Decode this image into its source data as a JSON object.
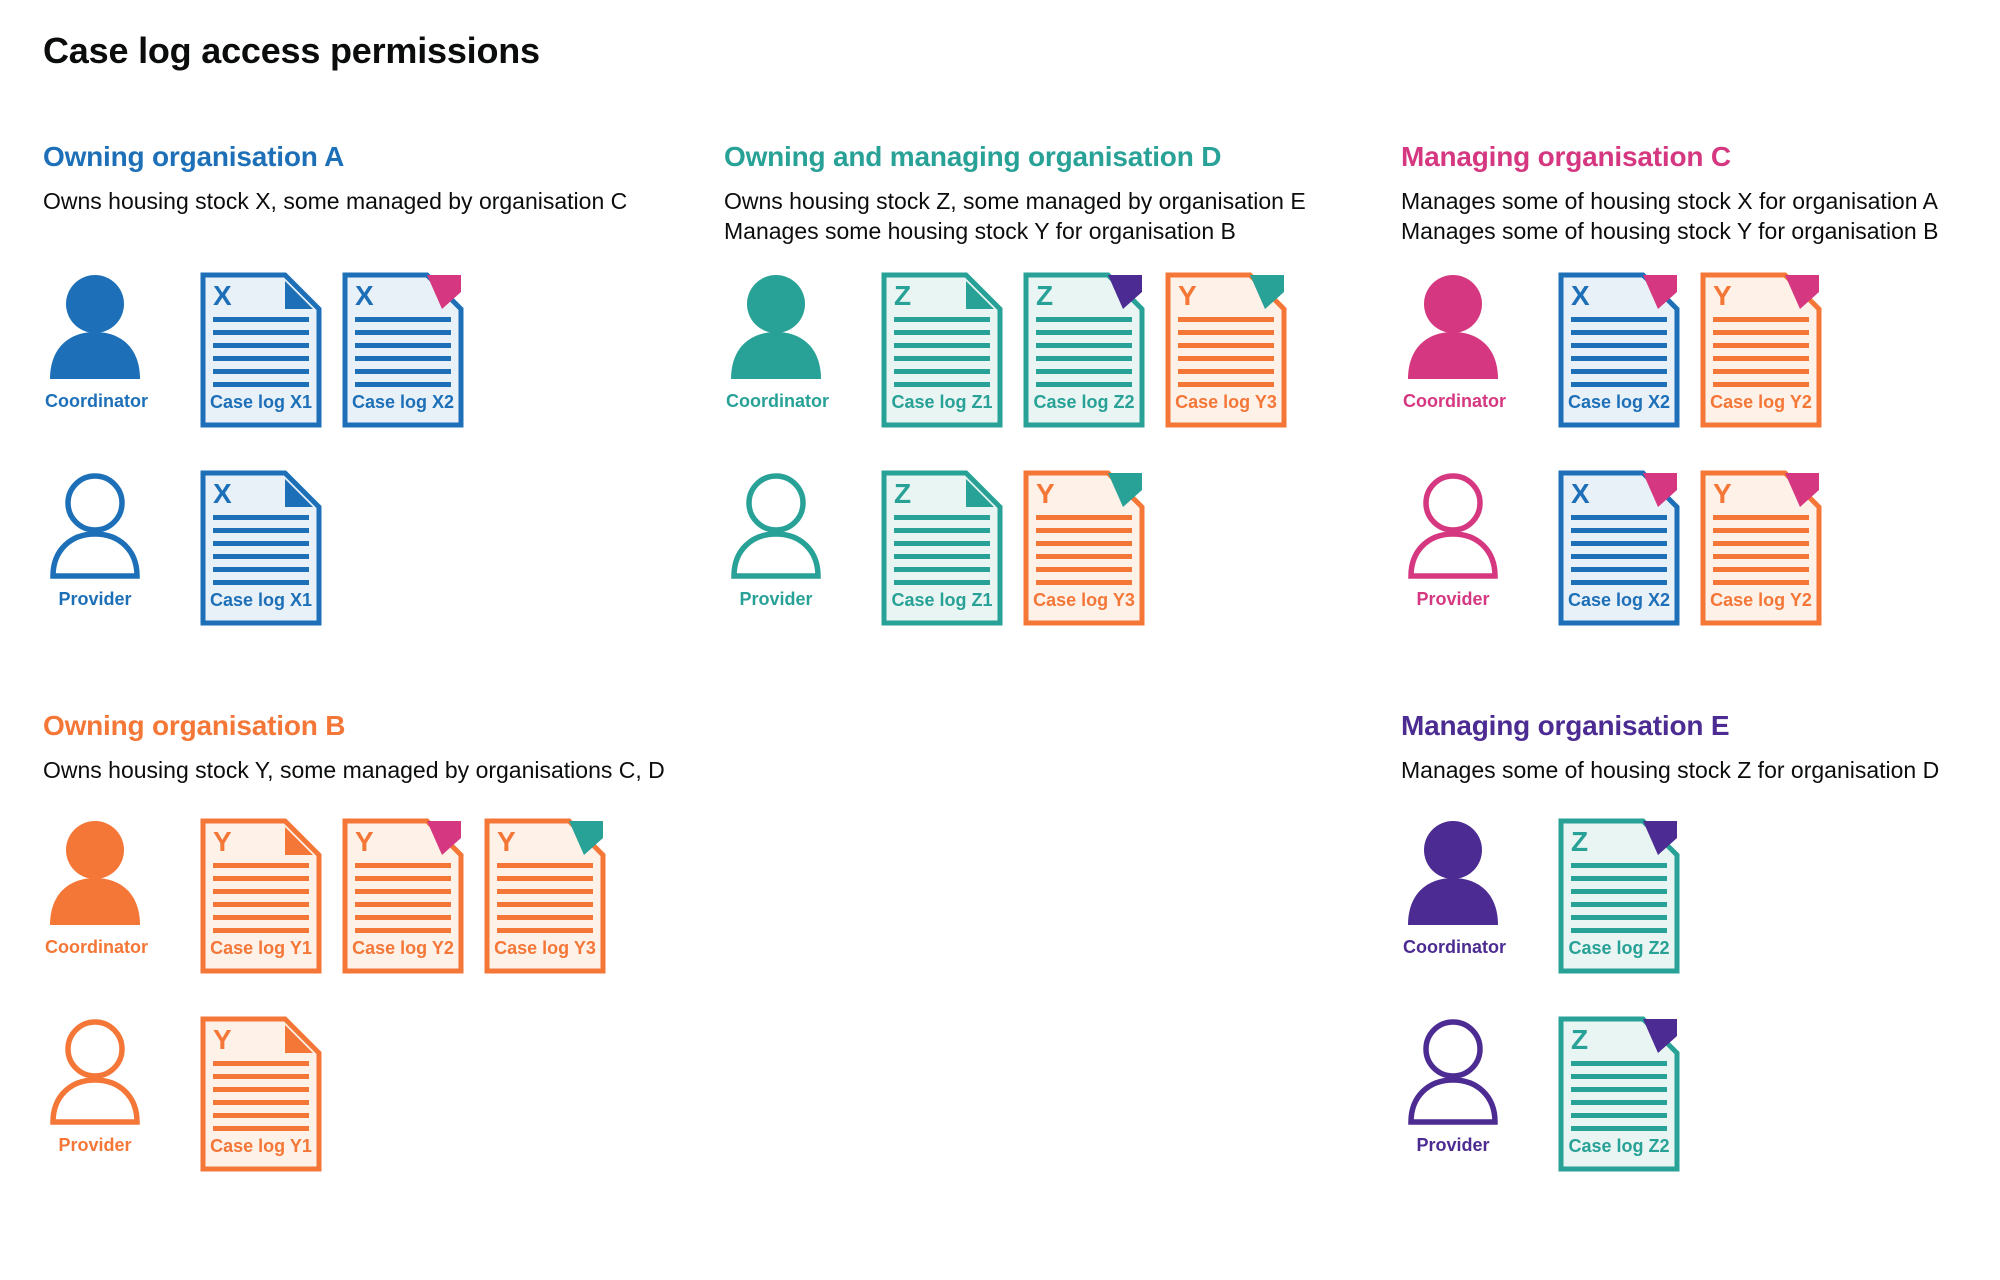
{
  "page": {
    "title": "Case log access permissions"
  },
  "palette": {
    "blue": "#1d70b8",
    "blue_tint": "#e9f1f8",
    "teal": "#28a197",
    "teal_tint": "#e9f5f3",
    "orange": "#f47738",
    "orange_tint": "#fdf1e8",
    "pink": "#d53880",
    "pink_tint": "#fbebf2",
    "purple": "#4c2c92",
    "purple_tint": "#edeaf4",
    "text": "#0b0c0c",
    "background": "#ffffff"
  },
  "sections": [
    {
      "id": "owning-organisation-a",
      "title": "Owning organisation A",
      "color": "blue",
      "subtitle_lines": [
        "Owns housing stock X, some managed by organisation C"
      ],
      "rows": [
        {
          "role": "Coordinator",
          "person": "filled",
          "docs": [
            {
              "letter": "X",
              "label": "Case log X1",
              "doc": "blue",
              "fold": "blue"
            },
            {
              "letter": "X",
              "label": "Case log X2",
              "doc": "blue",
              "fold": "pink"
            }
          ]
        },
        {
          "role": "Provider",
          "person": "outline",
          "docs": [
            {
              "letter": "X",
              "label": "Case log X1",
              "doc": "blue",
              "fold": "blue"
            }
          ]
        }
      ]
    },
    {
      "id": "owning-and-managing-organisation-d",
      "title": "Owning and managing organisation D",
      "color": "teal",
      "subtitle_lines": [
        "Owns housing stock Z, some managed by organisation E",
        "Manages some housing stock Y for organisation B"
      ],
      "rows": [
        {
          "role": "Coordinator",
          "person": "filled",
          "docs": [
            {
              "letter": "Z",
              "label": "Case log Z1",
              "doc": "teal",
              "fold": "teal"
            },
            {
              "letter": "Z",
              "label": "Case log Z2",
              "doc": "teal",
              "fold": "purple"
            },
            {
              "letter": "Y",
              "label": "Case log Y3",
              "doc": "orange",
              "fold": "teal"
            }
          ]
        },
        {
          "role": "Provider",
          "person": "outline",
          "docs": [
            {
              "letter": "Z",
              "label": "Case log Z1",
              "doc": "teal",
              "fold": "teal"
            },
            {
              "letter": "Y",
              "label": "Case log Y3",
              "doc": "orange",
              "fold": "teal"
            }
          ]
        }
      ]
    },
    {
      "id": "managing-organisation-c",
      "title": "Managing organisation C",
      "color": "pink",
      "subtitle_lines": [
        "Manages some of housing stock X for organisation A",
        "Manages some of housing stock Y for organisation B"
      ],
      "rows": [
        {
          "role": "Coordinator",
          "person": "filled",
          "docs": [
            {
              "letter": "X",
              "label": "Case log X2",
              "doc": "blue",
              "fold": "pink"
            },
            {
              "letter": "Y",
              "label": "Case log Y2",
              "doc": "orange",
              "fold": "pink"
            }
          ]
        },
        {
          "role": "Provider",
          "person": "outline",
          "docs": [
            {
              "letter": "X",
              "label": "Case log X2",
              "doc": "blue",
              "fold": "pink"
            },
            {
              "letter": "Y",
              "label": "Case log Y2",
              "doc": "orange",
              "fold": "pink"
            }
          ]
        }
      ]
    },
    {
      "id": "owning-organisation-b",
      "title": "Owning organisation B",
      "color": "orange",
      "subtitle_lines": [
        "Owns housing stock Y, some managed by organisations C, D"
      ],
      "rows": [
        {
          "role": "Coordinator",
          "person": "filled",
          "docs": [
            {
              "letter": "Y",
              "label": "Case log Y1",
              "doc": "orange",
              "fold": "orange"
            },
            {
              "letter": "Y",
              "label": "Case log Y2",
              "doc": "orange",
              "fold": "pink"
            },
            {
              "letter": "Y",
              "label": "Case log Y3",
              "doc": "orange",
              "fold": "teal"
            }
          ]
        },
        {
          "role": "Provider",
          "person": "outline",
          "docs": [
            {
              "letter": "Y",
              "label": "Case log Y1",
              "doc": "orange",
              "fold": "orange"
            }
          ]
        }
      ]
    },
    {
      "id": "managing-organisation-e",
      "title": "Managing organisation E",
      "color": "purple",
      "subtitle_lines": [
        "Manages some of housing stock Z for organisation D"
      ],
      "rows": [
        {
          "role": "Coordinator",
          "person": "filled",
          "docs": [
            {
              "letter": "Z",
              "label": "Case log Z2",
              "doc": "teal",
              "fold": "purple"
            }
          ]
        },
        {
          "role": "Provider",
          "person": "outline",
          "docs": [
            {
              "letter": "Z",
              "label": "Case log Z2",
              "doc": "teal",
              "fold": "purple"
            }
          ]
        }
      ]
    }
  ]
}
